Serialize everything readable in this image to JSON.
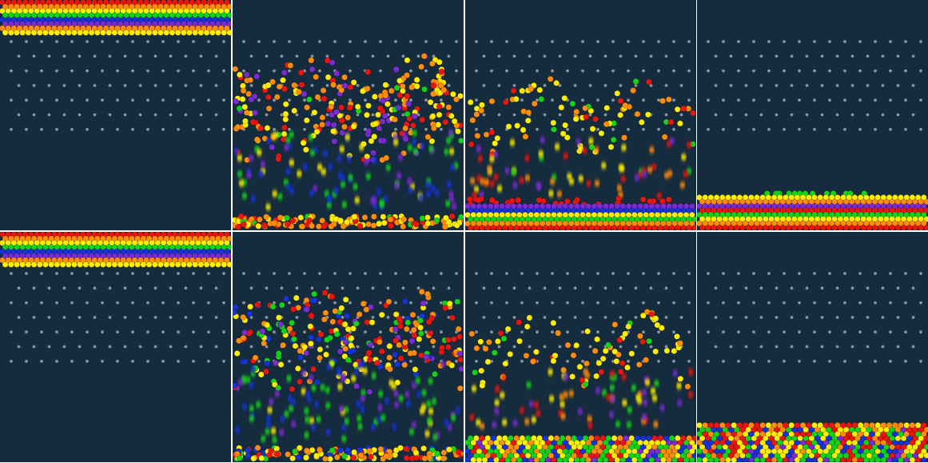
{
  "colors": {
    "background": "#152b3e",
    "peg": "#8b9299",
    "divider": "#ffffff",
    "red": "#e8160f",
    "orange": "#ff8c0a",
    "yellow": "#ffee00",
    "green": "#12d21a",
    "blue": "#1634d6",
    "purple": "#7a2bd2",
    "gold": "#ffb300"
  },
  "band_order": [
    "red",
    "orange",
    "yellow",
    "green",
    "blue",
    "purple",
    "orange",
    "yellow"
  ],
  "rows": [
    {
      "name": "simulation-row-top",
      "stages": [
        "initial",
        "falling-early",
        "falling-late",
        "settled"
      ]
    },
    {
      "name": "simulation-row-bottom",
      "stages": [
        "initial",
        "falling-early",
        "falling-late",
        "settled-mixed"
      ]
    }
  ]
}
